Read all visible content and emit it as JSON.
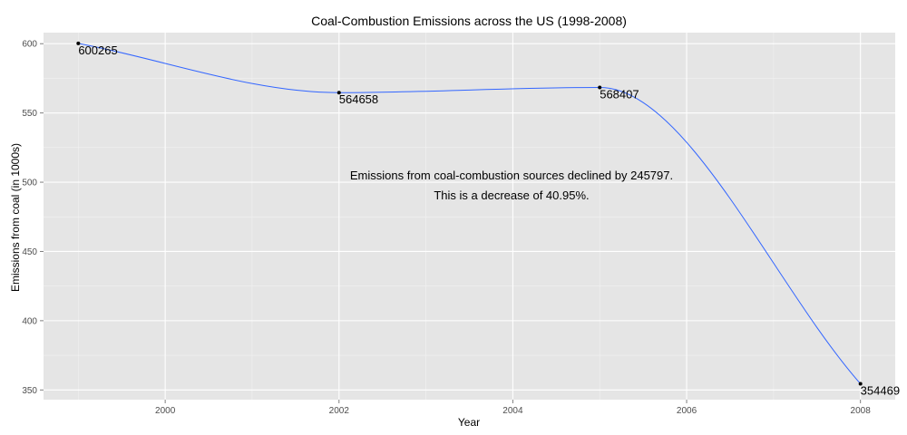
{
  "chart_data": {
    "type": "line",
    "title": "Coal-Combustion Emissions across the US (1998-2008)",
    "xlabel": "Year",
    "ylabel": "Emissions from coal (in 1000s)",
    "xlim": [
      1998.6,
      2008.4
    ],
    "ylim": [
      343,
      608
    ],
    "x_ticks": [
      2000,
      2002,
      2004,
      2006,
      2008
    ],
    "y_ticks": [
      350,
      400,
      450,
      500,
      550,
      600
    ],
    "x_tick_labels": [
      "2000",
      "2002",
      "2004",
      "2006",
      "2008"
    ],
    "y_tick_labels": [
      "350",
      "400",
      "450",
      "500",
      "550",
      "600"
    ],
    "points": [
      {
        "x": 1999,
        "y": 600.265,
        "label": "600265"
      },
      {
        "x": 2002,
        "y": 564.658,
        "label": "564658"
      },
      {
        "x": 2005,
        "y": 568.407,
        "label": "568407"
      },
      {
        "x": 2008,
        "y": 354.469,
        "label": "354469"
      }
    ],
    "annotation": [
      "Emissions from coal-combustion sources declined by 245797.",
      "This is a decrease of 40.95%."
    ],
    "grid": true,
    "colors": {
      "panel": "#e5e5e5",
      "grid_major": "#ffffff",
      "grid_minor": "#f2f2f2",
      "line": "#3366ff",
      "point": "#000000"
    }
  }
}
